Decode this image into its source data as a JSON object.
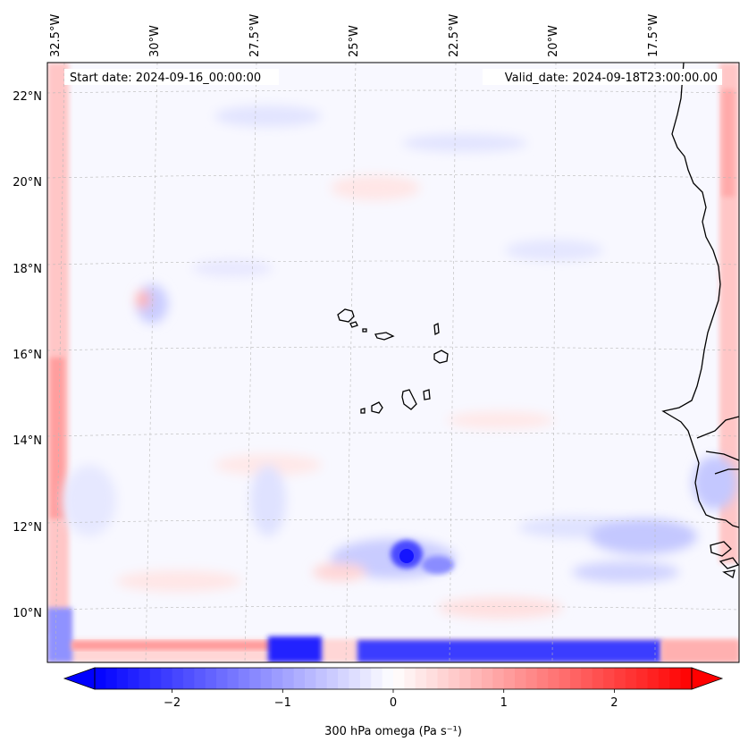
{
  "map": {
    "start_date": "Start date: 2024-09-16_00:00:00",
    "valid_date": "Valid_date: 2024-09-18T23:00:00.00",
    "lon_labels": [
      "32.5°W",
      "30°W",
      "27.5°W",
      "25°W",
      "22.5°W",
      "20°W",
      "17.5°W"
    ],
    "lat_labels": [
      "22°N",
      "20°N",
      "18°N",
      "16°N",
      "14°N",
      "12°N",
      "10°N"
    ],
    "features": [
      "Cabo Verde islands",
      "West African coastline"
    ]
  },
  "colorbar": {
    "label": "300 hPa omega (Pa s⁻¹)",
    "ticks": [
      "−2",
      "−1",
      "0",
      "1",
      "2"
    ],
    "range": [
      -2.7,
      2.7
    ],
    "negative_color": "#0000ff",
    "positive_color": "#ff0000"
  }
}
